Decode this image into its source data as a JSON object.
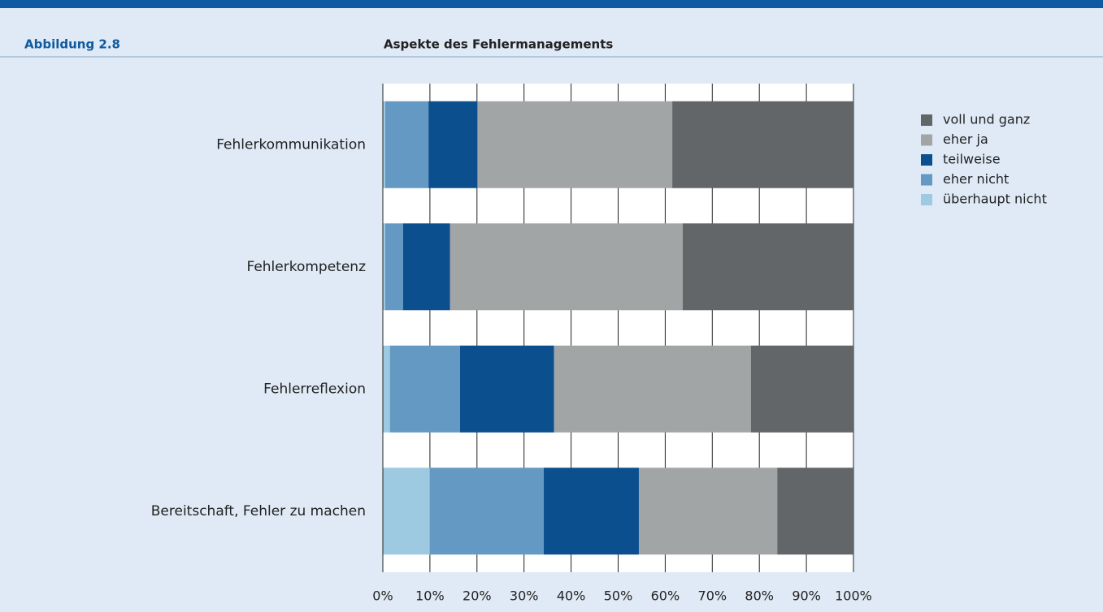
{
  "chart_data": {
    "type": "stacked_barh",
    "figure_label": "Abbildung 2.8",
    "title": "Aspekte des Fehlermanagements",
    "categories": [
      "Fehlerkommunikation",
      "Fehlerkompetenz",
      "Fehlerreflexion",
      "Bereitschaft, Fehler zu machen"
    ],
    "series": [
      {
        "name": "überhaupt nicht",
        "color": "#9ecae1",
        "values": [
          0.5,
          0.5,
          1.5,
          10
        ]
      },
      {
        "name": "eher nicht",
        "color": "#6399c2",
        "values": [
          9.2,
          3.8,
          14.9,
          24.2
        ]
      },
      {
        "name": "teilweise",
        "color": "#0b4f8f",
        "values": [
          10.4,
          10,
          20,
          20.2
        ]
      },
      {
        "name": "eher ja",
        "color": "#a2a5a6",
        "values": [
          41.4,
          49.4,
          41.8,
          29.4
        ]
      },
      {
        "name": "voll und ganz",
        "color": "#626668",
        "values": [
          38.5,
          36.3,
          21.8,
          16.2
        ]
      }
    ],
    "xlim": [
      0,
      100
    ],
    "xticks": [
      {
        "value": 0,
        "label": "0%"
      },
      {
        "value": 10,
        "label": "10%"
      },
      {
        "value": 20,
        "label": "20%"
      },
      {
        "value": 30,
        "label": "30%"
      },
      {
        "value": 40,
        "label": "40%"
      },
      {
        "value": 50,
        "label": "50%"
      },
      {
        "value": 60,
        "label": "60%"
      },
      {
        "value": 70,
        "label": "70%"
      },
      {
        "value": 80,
        "label": "80%"
      },
      {
        "value": 90,
        "label": "90%"
      },
      {
        "value": 100,
        "label": "100%"
      }
    ],
    "grid": true
  }
}
